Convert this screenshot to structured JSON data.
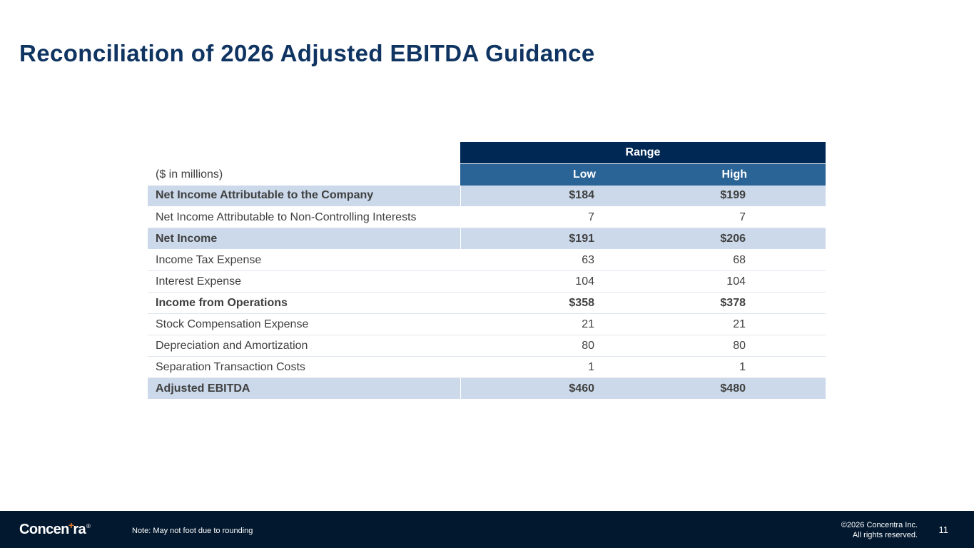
{
  "title": "Reconciliation of 2026 Adjusted EBITDA Guidance",
  "table": {
    "range_label": "Range",
    "units_label": "($ in millions)",
    "low_label": "Low",
    "high_label": "High",
    "rows": [
      {
        "label": "Net Income Attributable to the Company",
        "low": "$184",
        "high": "$199"
      },
      {
        "label": "Net Income Attributable to Non-Controlling Interests",
        "low": "7",
        "high": "7"
      },
      {
        "label": "Net Income",
        "low": "$191",
        "high": "$206"
      },
      {
        "label": "Income Tax Expense",
        "low": "63",
        "high": "68"
      },
      {
        "label": "Interest Expense",
        "low": "104",
        "high": "104"
      },
      {
        "label": "Income from Operations",
        "low": "$358",
        "high": "$378"
      },
      {
        "label": "Stock Compensation Expense",
        "low": "21",
        "high": "21"
      },
      {
        "label": "Depreciation and Amortization",
        "low": "80",
        "high": "80"
      },
      {
        "label": "Separation Transaction Costs",
        "low": "1",
        "high": "1"
      },
      {
        "label": "Adjusted EBITDA",
        "low": "$460",
        "high": "$480"
      }
    ]
  },
  "footer": {
    "logo_text": "Concentra",
    "logo_part1": "Concen",
    "logo_part2": "ra",
    "logo_plus": "+",
    "logo_reg": "®",
    "note": "Note: May not foot due to rounding",
    "copyright_line1": "©2026 Concentra Inc.",
    "copyright_line2": "All rights reserved.",
    "page_number": "11"
  },
  "colors": {
    "title": "#0f3461",
    "range_header": "#002855",
    "column_header": "#2a6396",
    "highlight_row": "#cbd9ea",
    "footer_bg": "#02182e",
    "logo_accent": "#e87722"
  }
}
